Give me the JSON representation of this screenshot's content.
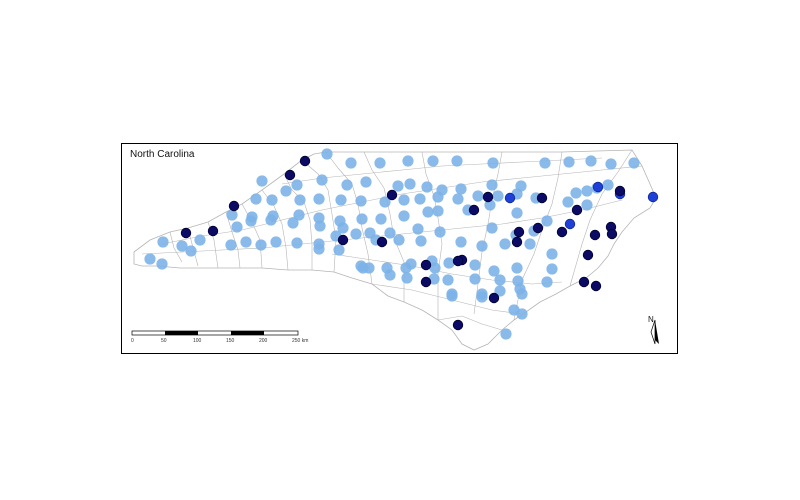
{
  "map": {
    "title": "North Carolina",
    "north_label": "N",
    "scale_bar": {
      "labels": [
        "0",
        "50",
        "100",
        "150",
        "200",
        "250 km"
      ]
    },
    "colors": {
      "county_border": "#b5b5b5",
      "light_point": "#7cb2e8",
      "medium_point": "#1f40d6",
      "dark_point": "#0b0b66",
      "frame": "#000000"
    }
  }
}
